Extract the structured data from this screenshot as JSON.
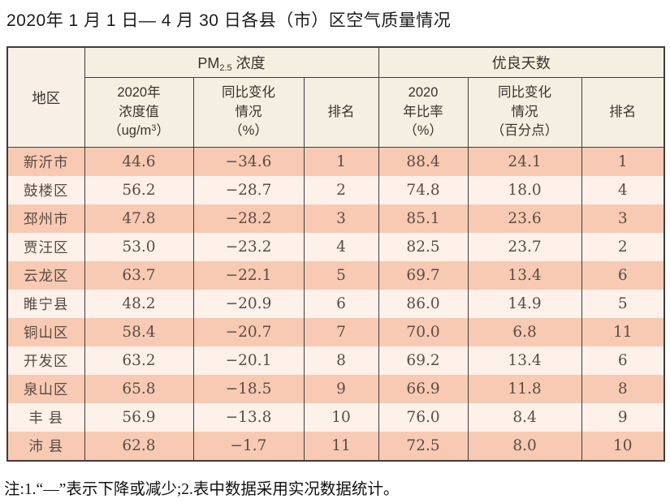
{
  "page": {
    "title": "2020年 1 月 1 日— 4 月 30 日各县（市）区空气质量情况",
    "note": "注:1.“—”表示下降或减少;2.表中数据采用实况数据统计。"
  },
  "table": {
    "header": {
      "region": "地区",
      "pm_group": {
        "prefix": "PM",
        "sub": "2.5",
        "suffix": " 浓度"
      },
      "good_group": "优良天数",
      "pm_value": {
        "line1": "2020年",
        "line2": "浓度值",
        "line3_prefix": "（ug/m",
        "line3_sup": "3",
        "line3_close": "）"
      },
      "pm_change": {
        "line1": "同比变化",
        "line2": "情况",
        "line3": "（%）"
      },
      "pm_rank": "排名",
      "good_rate": {
        "line1": "2020",
        "line2": "年比率",
        "line3": "（%）"
      },
      "good_change": {
        "line1": "同比变化",
        "line2": "情况",
        "line3": "（百分点）"
      },
      "good_rank": "排名"
    },
    "rows": [
      {
        "region": "新沂市",
        "pm_value": "44.6",
        "pm_change": "−34.6",
        "pm_rank": "1",
        "good_rate": "88.4",
        "good_change": "24.1",
        "good_rank": "1"
      },
      {
        "region": "鼓楼区",
        "pm_value": "56.2",
        "pm_change": "−28.7",
        "pm_rank": "2",
        "good_rate": "74.8",
        "good_change": "18.0",
        "good_rank": "4"
      },
      {
        "region": "邳州市",
        "pm_value": "47.8",
        "pm_change": "−28.2",
        "pm_rank": "3",
        "good_rate": "85.1",
        "good_change": "23.6",
        "good_rank": "3"
      },
      {
        "region": "贾汪区",
        "pm_value": "53.0",
        "pm_change": "−23.2",
        "pm_rank": "4",
        "good_rate": "82.5",
        "good_change": "23.7",
        "good_rank": "2"
      },
      {
        "region": "云龙区",
        "pm_value": "63.7",
        "pm_change": "−22.1",
        "pm_rank": "5",
        "good_rate": "69.7",
        "good_change": "13.4",
        "good_rank": "6"
      },
      {
        "region": "睢宁县",
        "pm_value": "48.2",
        "pm_change": "−20.9",
        "pm_rank": "6",
        "good_rate": "86.0",
        "good_change": "14.9",
        "good_rank": "5"
      },
      {
        "region": "铜山区",
        "pm_value": "58.4",
        "pm_change": "−20.7",
        "pm_rank": "7",
        "good_rate": "70.0",
        "good_change": "6.8",
        "good_rank": "11"
      },
      {
        "region": "开发区",
        "pm_value": "63.2",
        "pm_change": "−20.1",
        "pm_rank": "8",
        "good_rate": "69.2",
        "good_change": "13.4",
        "good_rank": "6"
      },
      {
        "region": "泉山区",
        "pm_value": "65.8",
        "pm_change": "−18.5",
        "pm_rank": "9",
        "good_rate": "66.9",
        "good_change": "11.8",
        "good_rank": "8"
      },
      {
        "region": "丰 县",
        "pm_value": "56.9",
        "pm_change": "−13.8",
        "pm_rank": "10",
        "good_rate": "76.0",
        "good_change": "8.4",
        "good_rank": "9"
      },
      {
        "region": "沛 县",
        "pm_value": "62.8",
        "pm_change": "−1.7",
        "pm_rank": "11",
        "good_rate": "72.5",
        "good_change": "8.0",
        "good_rank": "10"
      }
    ]
  },
  "colors": {
    "row_odd_bg": "#f8cab3",
    "row_even_bg": "#fdf1ea",
    "header_bg": "#f5efe1",
    "border": "#3d3d3d",
    "body_text": "#5b4c44"
  }
}
